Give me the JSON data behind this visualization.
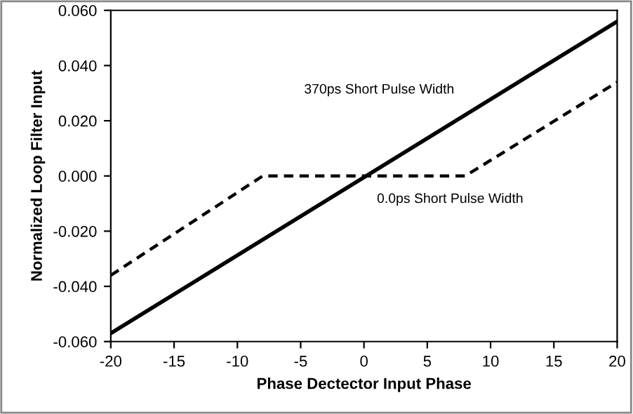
{
  "chart_data": {
    "type": "line",
    "xlabel": "Phase Dectector Input Phase",
    "ylabel": "Normalized Loop Filter Input",
    "xlim": [
      -20,
      20
    ],
    "xticks": [
      -20,
      -15,
      -10,
      -5,
      0,
      5,
      10,
      15,
      20
    ],
    "ylim": [
      -0.06,
      0.06
    ],
    "yticks": [
      {
        "value": -0.06,
        "label": "-0.060"
      },
      {
        "value": -0.04,
        "label": "-0.040"
      },
      {
        "value": -0.02,
        "label": "-0.020"
      },
      {
        "value": 0,
        "label": "0.000"
      },
      {
        "value": 0.02,
        "label": "0.020"
      },
      {
        "value": 0.04,
        "label": "0.040"
      },
      {
        "value": 0.06,
        "label": "0.060"
      }
    ],
    "grid": false,
    "legend": false,
    "series": [
      {
        "name": "370ps Short Pulse Width",
        "x": [
          -20,
          20
        ],
        "values": [
          -0.057,
          0.056
        ],
        "color": "#000000",
        "line_style": "solid"
      },
      {
        "name": "0.0ps Short Pulse Width",
        "x": [
          -20,
          -8,
          8,
          20
        ],
        "values": [
          -0.036,
          0,
          0,
          0.034
        ],
        "color": "#000000",
        "line_style": "dashed"
      }
    ]
  }
}
